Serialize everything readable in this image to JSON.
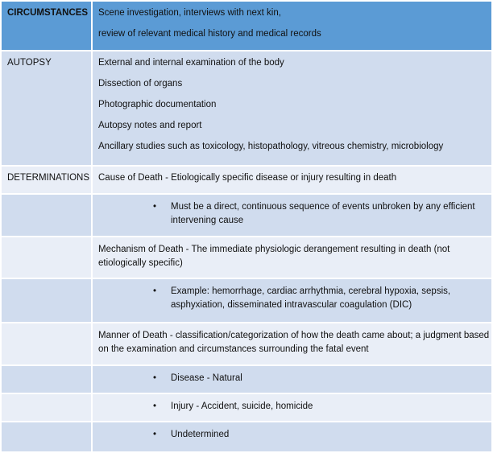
{
  "colors": {
    "header": "#5b9bd5",
    "row_dark": "#d0dcee",
    "row_light": "#e9eef7"
  },
  "rows": [
    {
      "label": "CIRCUMSTANCES",
      "lines": [
        "Scene investigation, interviews with next kin,",
        "review of relevant medical history and medical records"
      ]
    },
    {
      "label": "AUTOPSY",
      "lines": [
        "External and internal examination of the body",
        "Dissection of organs",
        "Photographic documentation",
        "Autopsy notes and report",
        "Ancillary studies such as toxicology, histopathology, vitreous chemistry, microbiology"
      ]
    },
    {
      "label": "DETERMINATIONS",
      "text": "Cause of Death - Etiologically specific disease or injury resulting in death"
    },
    {
      "bullet": "Must be a direct, continuous sequence of events unbroken by any efficient intervening cause"
    },
    {
      "text": "Mechanism of Death - The immediate physiologic derangement resulting in death (not etiologically specific)"
    },
    {
      "bullet": "Example: hemorrhage, cardiac arrhythmia, cerebral hypoxia, sepsis, asphyxiation, disseminated intravascular coagulation (DIC)"
    },
    {
      "text": "Manner of Death - classification/categorization of how the death came about; a judgment based on the examination and circumstances surrounding the fatal event"
    },
    {
      "bullet": "Disease - Natural"
    },
    {
      "bullet": "Injury - Accident, suicide, homicide"
    },
    {
      "bullet": "Undetermined"
    }
  ],
  "bullet_char": "•"
}
